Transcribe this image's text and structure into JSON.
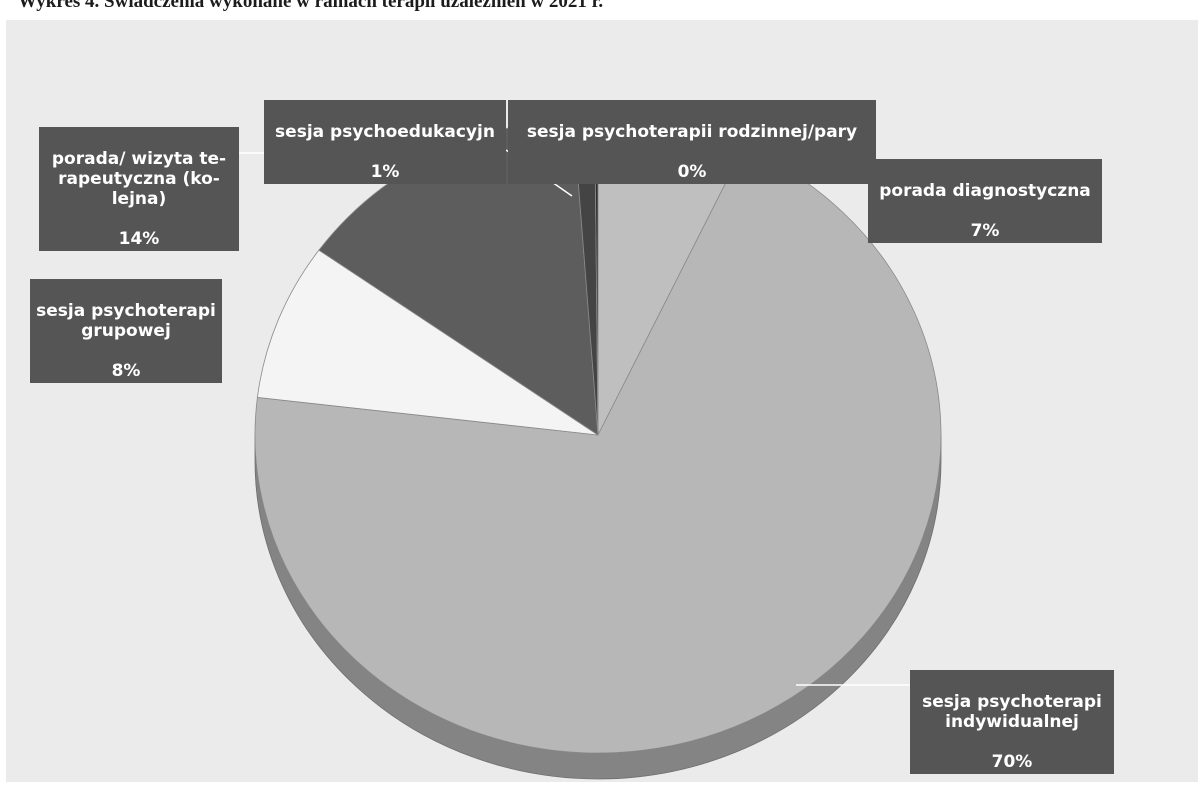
{
  "page": {
    "title": "Wykres 4. Świadczenia wykonane w ramach terapii uzależnień w 2021 r."
  },
  "colors": {
    "background": "#ebebeb",
    "label_box": "#555555",
    "label_text": "#ffffff"
  },
  "chart_data": {
    "type": "pie",
    "title": "",
    "legend": "none",
    "style": "3d",
    "slices": [
      {
        "label": "porada diagnostyczna",
        "value": 7,
        "value_label": "7%",
        "color": "#bfbfbf"
      },
      {
        "label": "sesja psychoterapii indywidualnej",
        "value": 70,
        "value_label": "70%",
        "color": "#b7b7b7"
      },
      {
        "label": "sesja psychoterapi grupowej",
        "value": 8,
        "value_label": "8%",
        "color": "#f4f4f4"
      },
      {
        "label": "porada/ wizyta terapeutyczna (kolejna)",
        "value": 14,
        "value_label": "14%",
        "color": "#5d5d5d"
      },
      {
        "label": "sesja psychoedukacyjna",
        "value": 1,
        "value_label": "1%",
        "color": "#444444"
      },
      {
        "label": "sesja psychoterapii rodzinnej/pary",
        "value": 0,
        "value_label": "0%",
        "color": "#2e2e2e"
      }
    ]
  },
  "labels": {
    "diagnostyczna": {
      "text": "porada diagnostyczna",
      "value": "7%"
    },
    "indywidualna": {
      "text": "sesja psychoterapi\nindywidualnej",
      "value": "70%"
    },
    "grupowa": {
      "text": "sesja psychoterapi\ngrupowej",
      "value": "8%"
    },
    "terapeutyczna": {
      "text": "porada/ wizyta te-\nrapeutyczna (ko-\nlejna)",
      "value": "14%"
    },
    "psychoedukacyjna": {
      "text": "sesja psychoedukacyjn",
      "value": "1%"
    },
    "rodzinna": {
      "text": "sesja psychoterapii rodzinnej/pary",
      "value": "0%"
    }
  }
}
